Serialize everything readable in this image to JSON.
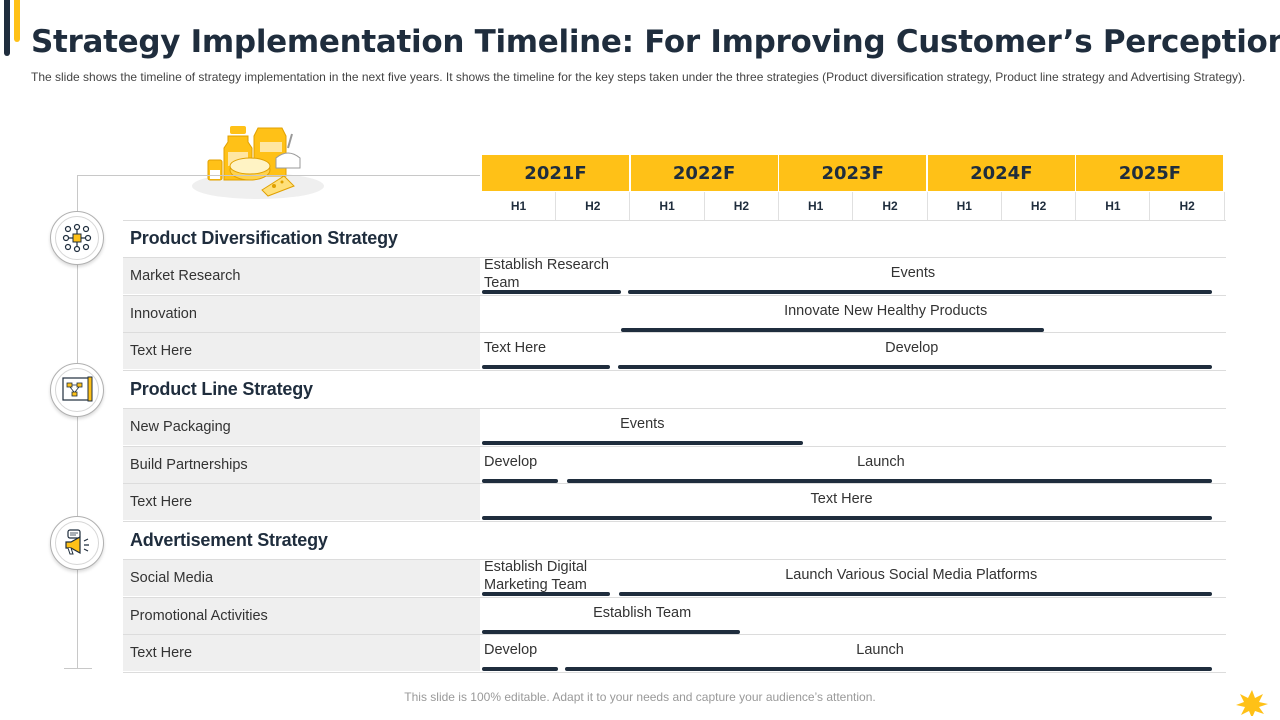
{
  "header": {
    "title": "Strategy Implementation Timeline: For Improving Customer’s Perception",
    "subtitle": "The slide shows the timeline of strategy implementation in the next five years. It shows the timeline for the key steps taken under the three strategies (Product diversification strategy, Product line strategy and Advertising Strategy)."
  },
  "timeline": {
    "years": [
      "2021F",
      "2022F",
      "2023F",
      "2024F",
      "2025F"
    ],
    "halves": [
      "H1",
      "H2"
    ]
  },
  "sections": {
    "product_diversification": {
      "title": "Product Diversification Strategy",
      "icon": "network-icon",
      "rows": [
        {
          "label": "Market Research",
          "tasks": [
            {
              "text": "Establish Research Team",
              "start": 0.0,
              "end": 0.95
            },
            {
              "text": "Events",
              "start": 1.0,
              "end": 5.0
            }
          ]
        },
        {
          "label": "Innovation",
          "tasks": [
            {
              "text": "Innovate New Healthy Products",
              "start": 0.95,
              "end": 3.85
            }
          ]
        },
        {
          "label": "Text Here",
          "tasks": [
            {
              "text": "Text Here",
              "start": 0.0,
              "end": 0.88
            },
            {
              "text": "Develop",
              "start": 0.93,
              "end": 5.0
            }
          ]
        }
      ]
    },
    "product_line": {
      "title": "Product Line Strategy",
      "icon": "flowchart-icon",
      "rows": [
        {
          "label": "New Packaging",
          "tasks": [
            {
              "text": "Events",
              "start": 0.0,
              "end": 2.2
            }
          ]
        },
        {
          "label": "Build Partnerships",
          "tasks": [
            {
              "text": "Develop",
              "start": 0.0,
              "end": 0.52
            },
            {
              "text": "Launch",
              "start": 0.58,
              "end": 5.0
            }
          ]
        },
        {
          "label": "Text Here",
          "tasks": [
            {
              "text": "Text Here",
              "start": 0.0,
              "end": 5.0
            }
          ]
        }
      ]
    },
    "advertisement": {
      "title": "Advertisement Strategy",
      "icon": "megaphone-icon",
      "rows": [
        {
          "label": "Social Media",
          "tasks": [
            {
              "text": "Establish Digital Marketing Team",
              "start": 0.0,
              "end": 0.88
            },
            {
              "text": "Launch Various Social Media Platforms",
              "start": 0.94,
              "end": 5.0
            }
          ]
        },
        {
          "label": "Promotional Activities",
          "tasks": [
            {
              "text": "Establish Team",
              "start": 0.0,
              "end": 1.77
            }
          ]
        },
        {
          "label": "Text Here",
          "tasks": [
            {
              "text": "Develop",
              "start": 0.0,
              "end": 0.52
            },
            {
              "text": "Launch",
              "start": 0.57,
              "end": 5.0
            }
          ]
        }
      ]
    }
  },
  "footer": {
    "text": "This slide is 100% editable. Adapt it to your needs and capture your audience’s attention."
  },
  "colors": {
    "accent": "#FFC117",
    "dark": "#1f2d3d",
    "row_bg": "#efefef"
  }
}
